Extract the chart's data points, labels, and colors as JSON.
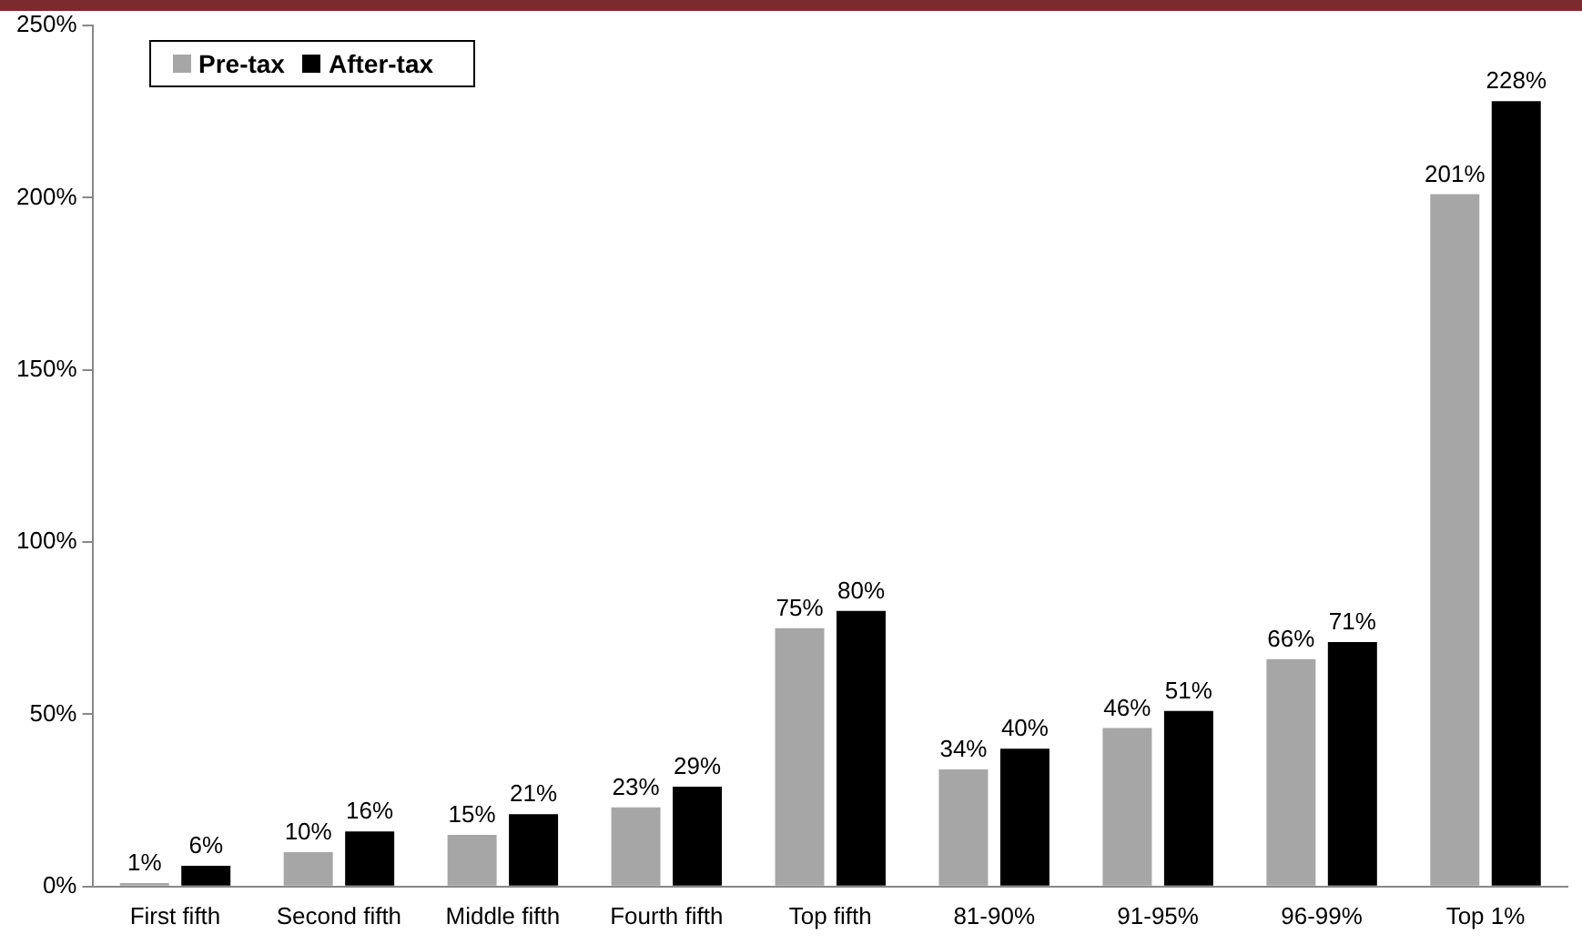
{
  "chart_data": {
    "type": "bar",
    "categories": [
      "First fifth",
      "Second fifth",
      "Middle fifth",
      "Fourth fifth",
      "Top fifth",
      "81-90%",
      "91-95%",
      "96-99%",
      "Top 1%"
    ],
    "series": [
      {
        "name": "Pre-tax",
        "color": "#a6a6a6",
        "values": [
          1,
          10,
          15,
          23,
          75,
          34,
          46,
          66,
          201
        ],
        "value_labels": [
          "1%",
          "10%",
          "15%",
          "23%",
          "75%",
          "34%",
          "46%",
          "66%",
          "201%"
        ]
      },
      {
        "name": "After-tax",
        "color": "#000000",
        "values": [
          6,
          16,
          21,
          29,
          80,
          40,
          51,
          71,
          228
        ],
        "value_labels": [
          "6%",
          "16%",
          "21%",
          "29%",
          "80%",
          "40%",
          "51%",
          "71%",
          "228%"
        ]
      }
    ],
    "ylim": [
      0,
      250
    ],
    "yticks": [
      {
        "value": 0,
        "label": "0%"
      },
      {
        "value": 50,
        "label": "50%"
      },
      {
        "value": 100,
        "label": "100%"
      },
      {
        "value": 150,
        "label": "150%"
      },
      {
        "value": 200,
        "label": "200%"
      },
      {
        "value": 250,
        "label": "250%"
      }
    ],
    "grid": false,
    "legend": "top left"
  }
}
